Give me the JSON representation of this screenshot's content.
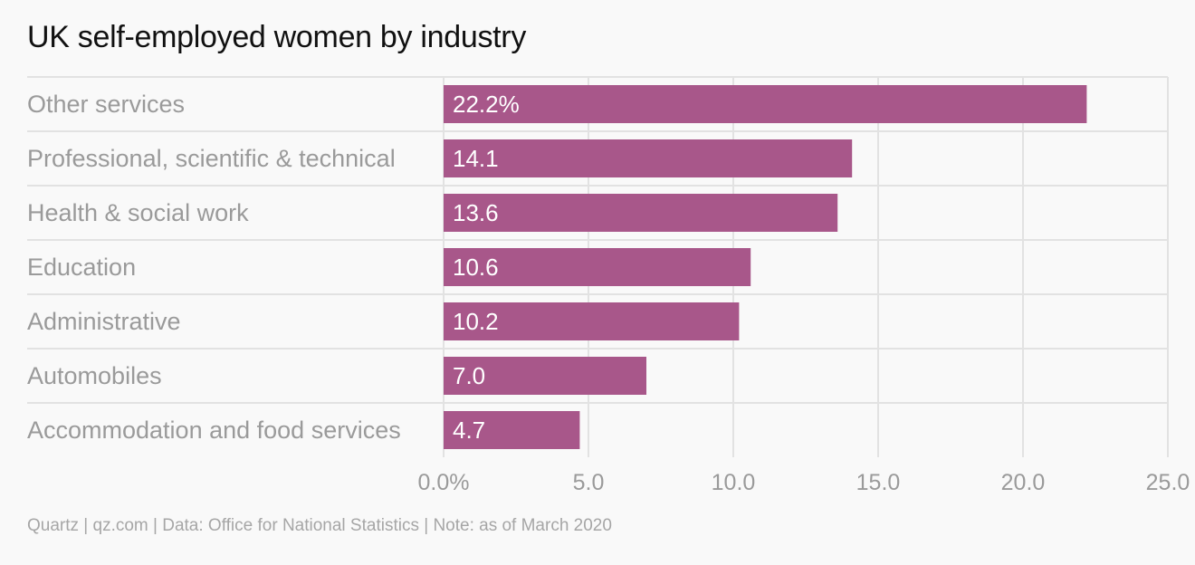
{
  "chart_data": {
    "type": "bar",
    "orientation": "horizontal",
    "title": "UK self-employed women by industry",
    "categories": [
      "Other services",
      "Professional, scientific & technical",
      "Health & social work",
      "Education",
      "Administrative",
      "Automobiles",
      "Accommodation and food services"
    ],
    "values": [
      22.2,
      14.1,
      13.6,
      10.6,
      10.2,
      7.0,
      4.7
    ],
    "value_labels": [
      "22.2%",
      "14.1",
      "13.6",
      "10.6",
      "10.2",
      "7.0",
      "4.7"
    ],
    "x_ticks": [
      "0.0%",
      "5.0",
      "10.0",
      "15.0",
      "20.0",
      "25.0"
    ],
    "x_tick_values": [
      0,
      5,
      10,
      15,
      20,
      25
    ],
    "xlim": [
      0,
      25
    ],
    "xlabel": "",
    "ylabel": "",
    "grid": true,
    "legend": "none",
    "bar_color": "#a8578a",
    "source": "Quartz | qz.com | Data: Office for National Statistics | Note: as of March 2020"
  }
}
